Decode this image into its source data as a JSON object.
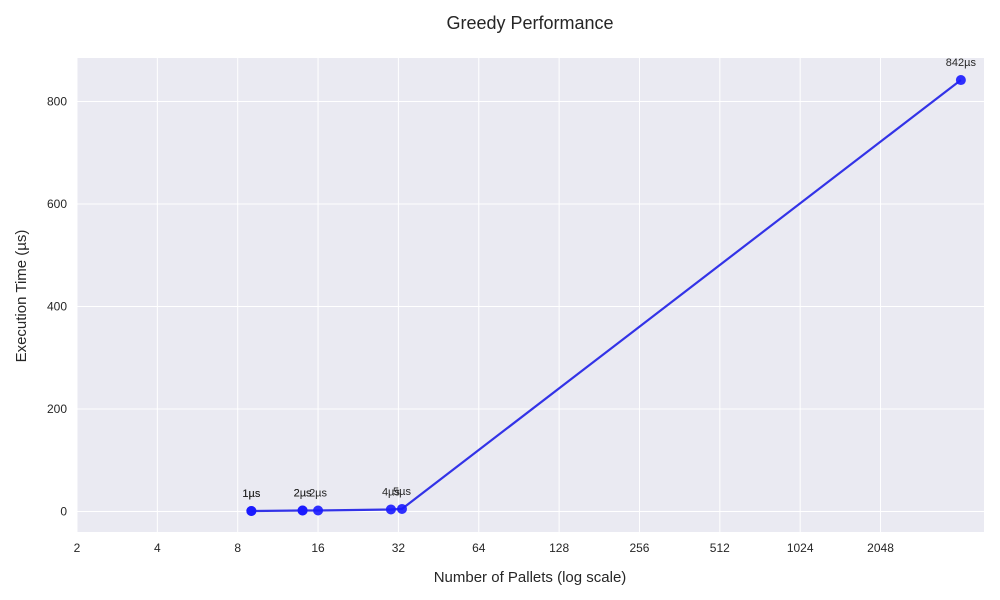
{
  "chart_data": {
    "type": "line",
    "title": "Greedy Performance",
    "xlabel": "Number of Pallets (log scale)",
    "ylabel": "Execution Time (µs)",
    "x_scale": "log2",
    "x_ticks": [
      2,
      4,
      8,
      16,
      32,
      64,
      128,
      256,
      512,
      1024,
      2048
    ],
    "y_ticks": [
      0,
      200,
      400,
      600,
      800
    ],
    "xlim": [
      2,
      5000
    ],
    "ylim": [
      -40,
      885
    ],
    "grid": true,
    "line_color": "#1f1fe6",
    "point_color": "#1a1aff",
    "background": "#eaeaf2",
    "series": [
      {
        "points": [
          {
            "x": 9,
            "y": 1,
            "label": "1µs"
          },
          {
            "x": 9,
            "y": 1,
            "label": "1µs"
          },
          {
            "x": 14,
            "y": 2,
            "label": "2µs"
          },
          {
            "x": 14,
            "y": 2,
            "label": "2µs"
          },
          {
            "x": 16,
            "y": 2,
            "label": "2µs"
          },
          {
            "x": 30,
            "y": 4,
            "label": "4µs"
          },
          {
            "x": 33,
            "y": 5,
            "label": "5µs"
          },
          {
            "x": 4096,
            "y": 842,
            "label": "842µs"
          }
        ]
      }
    ]
  }
}
